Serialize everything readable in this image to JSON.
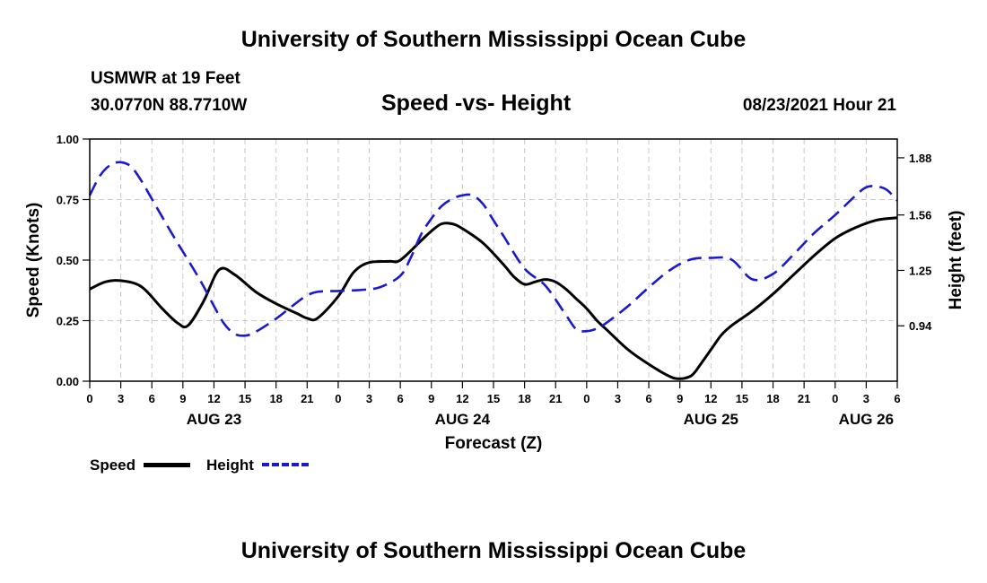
{
  "page": {
    "title_top": "University of Southern Mississippi Ocean Cube",
    "title_bottom": "University of Southern Mississippi Ocean Cube",
    "station": "USMWR at 19 Feet",
    "coords": "30.0770N  88.7710W",
    "chart_title": "Speed -vs- Height",
    "datetime": "08/23/2021 Hour 21"
  },
  "legend": {
    "speed_label": "Speed",
    "height_label": "Height"
  },
  "colors": {
    "speed": "#000000",
    "height": "#1a1acc",
    "grid": "#c8c8c8"
  },
  "chart_data": {
    "type": "line",
    "title": "Speed -vs- Height",
    "xlabel": "Forecast (Z)",
    "ylabel": "Speed (Knots)",
    "y2label": "Height (feet)",
    "xlim": [
      0,
      78
    ],
    "ylim": [
      0,
      1.0
    ],
    "y2lim": [
      0.63,
      1.985
    ],
    "y_ticks": [
      "0.00",
      "0.25",
      "0.50",
      "0.75",
      "1.00"
    ],
    "y_tick_values": [
      0,
      0.25,
      0.5,
      0.75,
      1.0
    ],
    "y2_ticks": [
      "0.94",
      "1.25",
      "1.56",
      "1.88"
    ],
    "y2_tick_values": [
      0.94,
      1.25,
      1.56,
      1.88
    ],
    "x_tick_labels": [
      "0",
      "3",
      "6",
      "9",
      "12",
      "15",
      "18",
      "21",
      "0",
      "3",
      "6",
      "9",
      "12",
      "15",
      "18",
      "21",
      "0",
      "3",
      "6",
      "9",
      "12",
      "15",
      "18",
      "21",
      "0",
      "3",
      "6"
    ],
    "day_labels": [
      {
        "label": "AUG 23",
        "x": 12
      },
      {
        "label": "AUG 24",
        "x": 36
      },
      {
        "label": "AUG 25",
        "x": 60
      },
      {
        "label": "AUG 26",
        "x": 75
      }
    ],
    "grid": true,
    "series": [
      {
        "name": "Speed",
        "axis": "left",
        "style": "solid",
        "x": [
          0,
          1.5,
          3,
          5,
          7,
          8.5,
          9.5,
          11,
          12.5,
          14,
          16,
          18,
          20,
          21,
          22,
          24,
          25.5,
          27,
          29,
          30,
          32,
          33,
          34,
          35,
          36,
          38,
          40,
          41,
          42,
          43,
          44,
          45,
          46,
          47,
          48,
          49,
          50,
          52,
          54,
          56,
          57,
          58,
          58.5,
          59,
          60,
          61,
          62,
          64,
          66,
          68,
          70,
          72,
          74,
          76,
          78
        ],
        "values": [
          0.38,
          0.41,
          0.415,
          0.39,
          0.3,
          0.24,
          0.23,
          0.33,
          0.46,
          0.44,
          0.37,
          0.32,
          0.28,
          0.26,
          0.26,
          0.35,
          0.45,
          0.49,
          0.495,
          0.5,
          0.58,
          0.62,
          0.65,
          0.65,
          0.63,
          0.57,
          0.48,
          0.43,
          0.4,
          0.41,
          0.42,
          0.41,
          0.38,
          0.34,
          0.3,
          0.25,
          0.21,
          0.13,
          0.07,
          0.02,
          0.01,
          0.02,
          0.04,
          0.07,
          0.13,
          0.19,
          0.23,
          0.29,
          0.36,
          0.44,
          0.52,
          0.59,
          0.635,
          0.665,
          0.675
        ]
      },
      {
        "name": "Height",
        "axis": "right",
        "style": "dashed",
        "x": [
          0,
          1,
          2,
          3,
          4,
          5,
          6,
          8,
          10,
          11,
          12,
          13,
          14,
          15,
          16,
          18,
          20,
          21,
          22,
          24,
          26,
          28,
          30,
          31,
          32,
          33,
          34,
          35,
          36,
          37,
          38,
          39,
          40,
          42,
          44,
          46,
          47,
          48,
          49,
          50,
          52,
          54,
          56,
          58,
          60,
          62,
          64,
          66,
          68,
          70,
          72,
          74,
          75,
          76,
          77,
          78
        ],
        "values": [
          1.67,
          1.78,
          1.84,
          1.855,
          1.83,
          1.75,
          1.65,
          1.45,
          1.26,
          1.16,
          1.05,
          0.95,
          0.895,
          0.885,
          0.905,
          0.98,
          1.07,
          1.11,
          1.13,
          1.135,
          1.14,
          1.155,
          1.22,
          1.32,
          1.45,
          1.54,
          1.61,
          1.65,
          1.67,
          1.67,
          1.62,
          1.53,
          1.44,
          1.26,
          1.165,
          1.0,
          0.92,
          0.91,
          0.925,
          0.96,
          1.05,
          1.155,
          1.25,
          1.31,
          1.32,
          1.31,
          1.2,
          1.23,
          1.34,
          1.46,
          1.56,
          1.67,
          1.715,
          1.72,
          1.7,
          1.64
        ]
      }
    ]
  }
}
